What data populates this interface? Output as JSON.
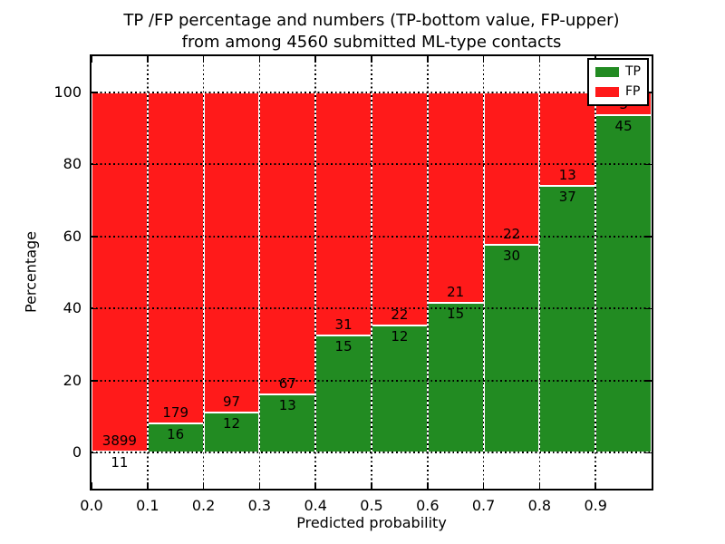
{
  "title": {
    "line1": "TP /FP percentage and numbers (TP-bottom value, FP-upper)",
    "line2": "from among 4560 submitted ML-type contacts"
  },
  "chart_data": {
    "type": "bar",
    "stacked": true,
    "normalized": "each bin scaled to 100%",
    "title": "TP /FP percentage and numbers (TP-bottom value, FP-upper)\nfrom among 4560 submitted ML-type contacts",
    "xlabel": "Predicted probability",
    "ylabel": "Percentage",
    "total_contacts": 4560,
    "bin_starts": [
      0.0,
      0.1,
      0.2,
      0.3,
      0.4,
      0.5,
      0.6,
      0.7,
      0.8,
      0.9
    ],
    "bin_width": 0.1,
    "x_tick_labels": [
      "0.0",
      "0.1",
      "0.2",
      "0.3",
      "0.4",
      "0.5",
      "0.6",
      "0.7",
      "0.8",
      "0.9"
    ],
    "y_ticks": [
      0,
      20,
      40,
      60,
      80,
      100
    ],
    "y_tick_labels": [
      "0",
      "20",
      "40",
      "60",
      "80",
      "100"
    ],
    "xlim": [
      0.0,
      1.0
    ],
    "ylim": [
      -10,
      110
    ],
    "grid": "dotted black, on",
    "series": [
      {
        "name": "TP",
        "color": "#228B22",
        "values": [
          11,
          16,
          12,
          13,
          15,
          12,
          15,
          30,
          37,
          45
        ]
      },
      {
        "name": "FP",
        "color": "#FF1A1A",
        "values": [
          3899,
          179,
          97,
          67,
          31,
          22,
          21,
          22,
          13,
          3
        ]
      }
    ],
    "tp_percent_per_bin": [
      0.28,
      8.21,
      11.01,
      16.25,
      32.61,
      35.29,
      41.67,
      57.69,
      74.0,
      93.75
    ],
    "legend": {
      "position": "upper right",
      "entries": [
        "TP",
        "FP"
      ]
    }
  },
  "colors": {
    "tp_green": "#228B22",
    "fp_red": "#FF1A1A",
    "background": "#FFFFFF",
    "text": "#000000"
  }
}
